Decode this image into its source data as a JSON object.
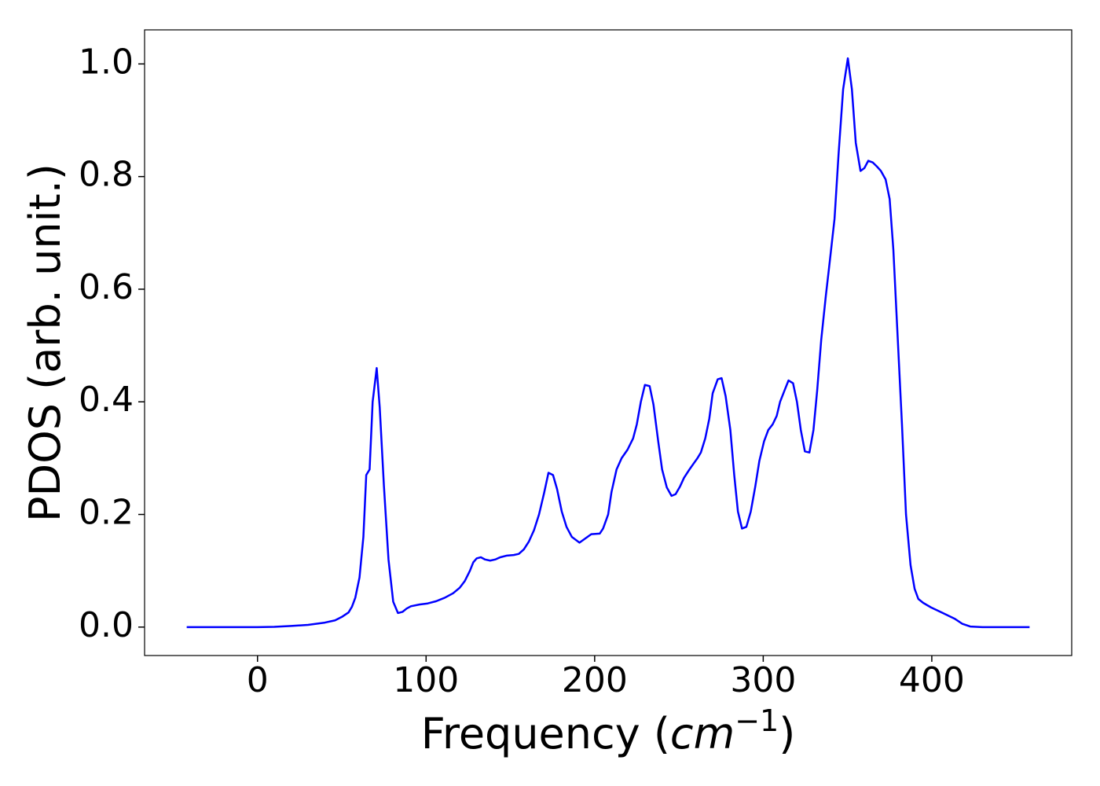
{
  "chart_data": {
    "type": "line",
    "ylabel": "PDOS (arb. unit.)",
    "xlabel_parts": [
      "Frequency (",
      "cm",
      "−1",
      ")"
    ],
    "xlim": [
      -67,
      483
    ],
    "ylim": [
      -0.0505,
      1.0605
    ],
    "xticks": [
      0,
      100,
      200,
      300,
      400
    ],
    "yticks": [
      {
        "value": 0,
        "label": "0.0"
      },
      0.2,
      0.4,
      0.6,
      0.8,
      {
        "value": 1,
        "label": "1.0"
      }
    ],
    "grid": false,
    "x": [
      -42,
      -20,
      0,
      10,
      20,
      30,
      40,
      46,
      50,
      54,
      56,
      58,
      60.5,
      62.8,
      64.5,
      66.5,
      68.3,
      70.7,
      72.5,
      75,
      77.7,
      80.5,
      83.3,
      86,
      88.5,
      91,
      96,
      101,
      106,
      111,
      116,
      120,
      123,
      126,
      128,
      130,
      132.5,
      135,
      138,
      141,
      144,
      148,
      152,
      155,
      158,
      161,
      164,
      167,
      170,
      172.6,
      175.3,
      177.7,
      180.5,
      183.3,
      186.5,
      191,
      198,
      203,
      205,
      208,
      210,
      213,
      216,
      219.5,
      222.8,
      225,
      227.4,
      229.8,
      232.6,
      234.9,
      237.7,
      240,
      242.8,
      245.6,
      248,
      250.7,
      253,
      255.8,
      258.6,
      261,
      263,
      265.6,
      268,
      270,
      273,
      275.3,
      277.7,
      280.5,
      282.8,
      285,
      287.4,
      290,
      292.6,
      295.3,
      297.7,
      300.5,
      303,
      305.6,
      308,
      310,
      312.6,
      315,
      317.7,
      320,
      322.3,
      324.7,
      327.4,
      329.8,
      332,
      334.4,
      337.2,
      339.5,
      342.3,
      344.7,
      347.4,
      350.2,
      352.6,
      354.9,
      357.7,
      360,
      362.3,
      365,
      367.4,
      369.8,
      372.6,
      375,
      377.2,
      379.5,
      382.3,
      384.7,
      387.4,
      389.8,
      392,
      394.9,
      399.5,
      406.5,
      413.5,
      418,
      422.8,
      430,
      458
    ],
    "series": [
      {
        "name": "PDOS",
        "color": "#0000ff",
        "values": [
          0,
          0,
          0,
          0.0005,
          0.002,
          0.004,
          0.008,
          0.012,
          0.018,
          0.026,
          0.036,
          0.052,
          0.088,
          0.16,
          0.27,
          0.28,
          0.4,
          0.46,
          0.39,
          0.25,
          0.12,
          0.045,
          0.025,
          0.027,
          0.033,
          0.037,
          0.04,
          0.042,
          0.046,
          0.052,
          0.06,
          0.07,
          0.082,
          0.1,
          0.115,
          0.122,
          0.124,
          0.12,
          0.118,
          0.12,
          0.124,
          0.127,
          0.128,
          0.13,
          0.138,
          0.152,
          0.172,
          0.2,
          0.238,
          0.274,
          0.27,
          0.245,
          0.205,
          0.178,
          0.16,
          0.15,
          0.165,
          0.166,
          0.175,
          0.2,
          0.24,
          0.28,
          0.3,
          0.315,
          0.335,
          0.36,
          0.4,
          0.43,
          0.428,
          0.395,
          0.33,
          0.28,
          0.248,
          0.233,
          0.236,
          0.25,
          0.265,
          0.278,
          0.29,
          0.3,
          0.31,
          0.335,
          0.37,
          0.415,
          0.44,
          0.442,
          0.41,
          0.35,
          0.27,
          0.205,
          0.175,
          0.178,
          0.205,
          0.25,
          0.295,
          0.33,
          0.35,
          0.36,
          0.375,
          0.4,
          0.42,
          0.438,
          0.433,
          0.4,
          0.35,
          0.312,
          0.31,
          0.35,
          0.42,
          0.51,
          0.59,
          0.65,
          0.725,
          0.84,
          0.955,
          1.01,
          0.955,
          0.86,
          0.81,
          0.815,
          0.828,
          0.825,
          0.818,
          0.81,
          0.795,
          0.76,
          0.67,
          0.53,
          0.36,
          0.2,
          0.11,
          0.068,
          0.05,
          0.043,
          0.035,
          0.025,
          0.015,
          0.006,
          0.001,
          0,
          0
        ]
      }
    ]
  }
}
